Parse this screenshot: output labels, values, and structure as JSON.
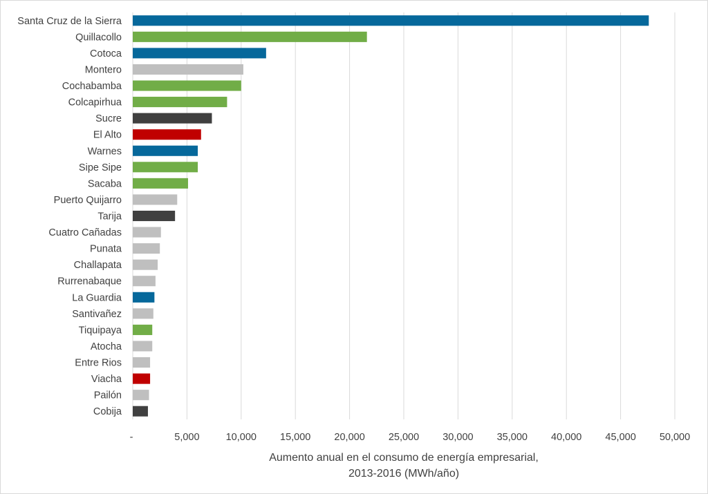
{
  "chart_data": {
    "type": "bar",
    "orientation": "horizontal",
    "categories": [
      "Santa Cruz de la Sierra",
      "Quillacollo",
      "Cotoca",
      "Montero",
      "Cochabamba",
      "Colcapirhua",
      "Sucre",
      "El Alto",
      "Warnes",
      "Sipe Sipe",
      "Sacaba",
      "Puerto Quijarro",
      "Tarija",
      "Cuatro Cañadas",
      "Punata",
      "Challapata",
      "Rurrenabaque",
      "La Guardia",
      "Santivañez",
      "Tiquipaya",
      "Atocha",
      "Entre Rios",
      "Viacha",
      "Pailón",
      "Cobija"
    ],
    "values": [
      47600,
      21600,
      12300,
      10200,
      10000,
      8700,
      7300,
      6300,
      6000,
      6000,
      5100,
      4100,
      3900,
      2600,
      2500,
      2300,
      2100,
      2000,
      1900,
      1800,
      1800,
      1600,
      1600,
      1500,
      1400
    ],
    "colors": [
      "#06689b",
      "#71ad47",
      "#06689b",
      "#bfbfbf",
      "#71ad47",
      "#71ad47",
      "#404040",
      "#c00000",
      "#06689b",
      "#71ad47",
      "#71ad47",
      "#bfbfbf",
      "#404040",
      "#bfbfbf",
      "#bfbfbf",
      "#bfbfbf",
      "#bfbfbf",
      "#06689b",
      "#bfbfbf",
      "#71ad47",
      "#bfbfbf",
      "#bfbfbf",
      "#c00000",
      "#bfbfbf",
      "#404040"
    ],
    "xlim": [
      0,
      50000
    ],
    "xticks": [
      0,
      5000,
      10000,
      15000,
      20000,
      25000,
      30000,
      35000,
      40000,
      45000,
      50000
    ],
    "xtick_labels": [
      "-",
      "5,000",
      "10,000",
      "15,000",
      "20,000",
      "25,000",
      "30,000",
      "35,000",
      "40,000",
      "45,000",
      "50,000"
    ],
    "xlabel_lines": [
      "Aumento anual en el consumo de energía empresarial,",
      "2013-2016 (MWh/año)"
    ],
    "grid": true,
    "gridline_color": "#d9d9d9"
  }
}
